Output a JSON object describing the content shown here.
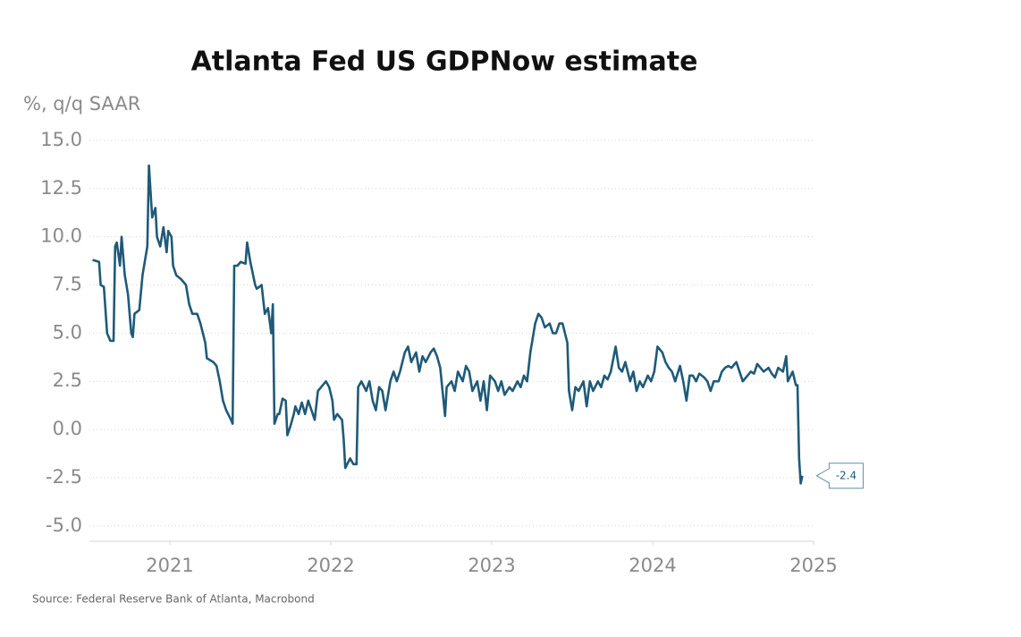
{
  "chart_data": {
    "type": "line",
    "title": "Atlanta Fed US GDPNow estimate",
    "y_label": "%, q/q SAAR",
    "source": "Source: Federal Reserve Bank of Atlanta, Macrobond",
    "color": "#1f5a78",
    "xlim": [
      2020.5,
      2025.0
    ],
    "xticks": [
      2021,
      2022,
      2023,
      2024,
      2025
    ],
    "ylim": [
      -5.8,
      15.3
    ],
    "yticks": [
      {
        "value": 15,
        "label": "15.0"
      },
      {
        "value": 12.5,
        "label": "12.5"
      },
      {
        "value": 10,
        "label": "10.0"
      },
      {
        "value": 7.5,
        "label": "7.5"
      },
      {
        "value": 5,
        "label": "5.0"
      },
      {
        "value": 2.5,
        "label": "2.5"
      },
      {
        "value": 0,
        "label": "0.0"
      },
      {
        "value": -2.5,
        "label": "-2.5"
      },
      {
        "value": -5,
        "label": "-5.0"
      }
    ],
    "grid": true,
    "x": [
      2020.52,
      2020.56,
      2020.57,
      2020.59,
      2020.61,
      2020.63,
      2020.65,
      2020.66,
      2020.67,
      2020.69,
      2020.7,
      2020.72,
      2020.74,
      2020.76,
      2020.77,
      2020.78,
      2020.81,
      2020.83,
      2020.86,
      2020.87,
      2020.89,
      2020.91,
      2020.92,
      2020.94,
      2020.96,
      2020.98,
      2020.99,
      2021.01,
      2021.02,
      2021.04,
      2021.07,
      2021.1,
      2021.12,
      2021.14,
      2021.17,
      2021.19,
      2021.22,
      2021.23,
      2021.27,
      2021.29,
      2021.31,
      2021.33,
      2021.35,
      2021.38,
      2021.39,
      2021.4,
      2021.42,
      2021.44,
      2021.47,
      2021.48,
      2021.5,
      2021.53,
      2021.54,
      2021.57,
      2021.59,
      2021.61,
      2021.63,
      2021.64,
      2021.65,
      2021.67,
      2021.68,
      2021.7,
      2021.72,
      2021.73,
      2021.75,
      2021.77,
      2021.78,
      2021.8,
      2021.82,
      2021.84,
      2021.86,
      2021.88,
      2021.9,
      2021.92,
      2021.94,
      2021.97,
      2021.99,
      2022.01,
      2022.02,
      2022.04,
      2022.07,
      2022.08,
      2022.09,
      2022.12,
      2022.14,
      2022.16,
      2022.17,
      2022.19,
      2022.22,
      2022.24,
      2022.26,
      2022.28,
      2022.3,
      2022.32,
      2022.34,
      2022.37,
      2022.39,
      2022.41,
      2022.43,
      2022.46,
      2022.48,
      2022.5,
      2022.53,
      2022.55,
      2022.57,
      2022.59,
      2022.62,
      2022.64,
      2022.66,
      2022.68,
      2022.71,
      2022.72,
      2022.75,
      2022.77,
      2022.79,
      2022.82,
      2022.84,
      2022.86,
      2022.88,
      2022.91,
      2022.93,
      2022.95,
      2022.97,
      2022.99,
      2023.02,
      2023.04,
      2023.06,
      2023.08,
      2023.11,
      2023.13,
      2023.16,
      2023.18,
      2023.2,
      2023.22,
      2023.24,
      2023.27,
      2023.29,
      2023.31,
      2023.33,
      2023.36,
      2023.38,
      2023.4,
      2023.42,
      2023.44,
      2023.47,
      2023.48,
      2023.5,
      2023.52,
      2023.54,
      2023.57,
      2023.59,
      2023.61,
      2023.63,
      2023.66,
      2023.68,
      2023.7,
      2023.72,
      2023.74,
      2023.77,
      2023.79,
      2023.81,
      2023.83,
      2023.86,
      2023.88,
      2023.9,
      2023.92,
      2023.94,
      2023.97,
      2023.99,
      2024.01,
      2024.03,
      2024.06,
      2024.08,
      2024.1,
      2024.12,
      2024.14,
      2024.17,
      2024.19,
      2024.21,
      2024.23,
      2024.25,
      2024.27,
      2024.29,
      2024.32,
      2024.34,
      2024.36,
      2024.38,
      2024.41,
      2024.43,
      2024.45,
      2024.47,
      2024.49,
      2024.52,
      2024.54,
      2024.56,
      2024.58,
      2024.61,
      2024.63,
      2024.65,
      2024.67,
      2024.69,
      2024.72,
      2024.74,
      2024.76,
      2024.78,
      2024.81,
      2024.83,
      2024.84,
      2024.87,
      2024.89,
      2024.9,
      2024.91,
      2024.92,
      2024.93
    ],
    "values": [
      8.8,
      8.7,
      7.5,
      7.4,
      5.0,
      4.6,
      4.6,
      9.5,
      9.7,
      8.5,
      10.0,
      8.0,
      7.0,
      5.0,
      4.8,
      6.0,
      6.2,
      8.0,
      9.5,
      13.7,
      11.0,
      11.5,
      10.0,
      9.5,
      10.5,
      9.2,
      10.3,
      10.0,
      8.5,
      8.0,
      7.8,
      7.5,
      6.5,
      6.0,
      6.0,
      5.5,
      4.5,
      3.7,
      3.5,
      3.3,
      2.5,
      1.5,
      1.0,
      0.5,
      0.3,
      8.5,
      8.5,
      8.7,
      8.6,
      9.7,
      8.7,
      7.5,
      7.3,
      7.5,
      6.0,
      6.3,
      5.0,
      6.5,
      0.3,
      0.8,
      0.8,
      1.6,
      1.5,
      -0.3,
      0.2,
      0.8,
      1.2,
      0.8,
      1.4,
      0.8,
      1.5,
      1.0,
      0.5,
      2.0,
      2.2,
      2.5,
      2.2,
      1.5,
      0.5,
      0.8,
      0.5,
      -0.5,
      -2.0,
      -1.5,
      -1.8,
      -1.8,
      2.2,
      2.5,
      2.0,
      2.5,
      1.5,
      1.0,
      2.2,
      2.0,
      1.0,
      2.5,
      3.0,
      2.5,
      3.0,
      4.0,
      4.3,
      3.5,
      4.0,
      3.0,
      3.8,
      3.5,
      4.0,
      4.2,
      3.8,
      3.2,
      0.7,
      2.2,
      2.5,
      2.0,
      3.0,
      2.5,
      3.3,
      3.0,
      2.0,
      2.5,
      1.5,
      2.5,
      1.0,
      2.8,
      2.5,
      2.0,
      2.5,
      1.8,
      2.2,
      2.0,
      2.5,
      2.2,
      2.8,
      2.5,
      4.0,
      5.5,
      6.0,
      5.8,
      5.3,
      5.5,
      5.0,
      5.0,
      5.5,
      5.5,
      4.5,
      2.0,
      1.0,
      2.2,
      2.0,
      2.5,
      1.2,
      2.5,
      2.0,
      2.5,
      2.2,
      2.8,
      2.6,
      3.0,
      4.3,
      3.2,
      3.0,
      3.5,
      2.5,
      3.0,
      2.0,
      2.5,
      2.2,
      2.8,
      2.5,
      3.0,
      4.3,
      4.0,
      3.5,
      3.2,
      3.0,
      2.5,
      3.3,
      2.5,
      1.5,
      2.8,
      2.8,
      2.5,
      2.9,
      2.7,
      2.5,
      2.0,
      2.5,
      2.5,
      3.0,
      3.2,
      3.3,
      3.2,
      3.5,
      3.0,
      2.5,
      2.7,
      3.0,
      2.9,
      3.4,
      3.2,
      3.0,
      3.2,
      2.9,
      2.7,
      3.2,
      3.0,
      3.8,
      2.5,
      3.0,
      2.3,
      2.3,
      -1.5,
      -2.8,
      -2.4
    ]
  }
}
